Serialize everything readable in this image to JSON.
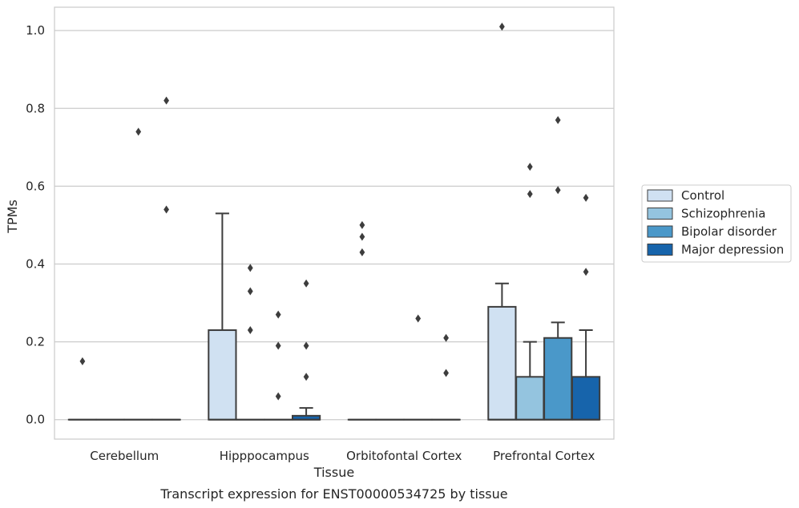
{
  "chart_data": {
    "type": "box",
    "caption": "Transcript expression for ENST00000534725 by tissue",
    "xlabel": "Tissue",
    "ylabel": "TPMs",
    "ylim": [
      -0.05,
      1.06
    ],
    "yticks": [
      0.0,
      0.2,
      0.4,
      0.6,
      0.8,
      1.0
    ],
    "ytick_labels": [
      "0.0",
      "0.2",
      "0.4",
      "0.6",
      "0.8",
      "1.0"
    ],
    "grid": true,
    "legend_position": "right",
    "categories": [
      "Cerebellum",
      "Hipppocampus",
      "Orbitofontal Cortex",
      "Prefrontal Cortex"
    ],
    "series": [
      {
        "name": "Control",
        "color": "#d0e1f2",
        "boxes": [
          {
            "q1": 0,
            "median": 0,
            "q3": 0,
            "whisker_low": 0,
            "whisker_high": 0,
            "outliers": [
              0.15
            ]
          },
          {
            "q1": 0,
            "median": 0,
            "q3": 0.23,
            "whisker_low": 0,
            "whisker_high": 0.53,
            "outliers": []
          },
          {
            "q1": 0,
            "median": 0,
            "q3": 0,
            "whisker_low": 0,
            "whisker_high": 0,
            "outliers": [
              0.43,
              0.47,
              0.5
            ]
          },
          {
            "q1": 0,
            "median": 0,
            "q3": 0.29,
            "whisker_low": 0,
            "whisker_high": 0.35,
            "outliers": [
              1.01
            ]
          }
        ]
      },
      {
        "name": "Schizophrenia",
        "color": "#94c4df",
        "boxes": [
          {
            "q1": 0,
            "median": 0,
            "q3": 0,
            "whisker_low": 0,
            "whisker_high": 0,
            "outliers": []
          },
          {
            "q1": 0,
            "median": 0,
            "q3": 0,
            "whisker_low": 0,
            "whisker_high": 0,
            "outliers": [
              0.23,
              0.33,
              0.39
            ]
          },
          {
            "q1": 0,
            "median": 0,
            "q3": 0,
            "whisker_low": 0,
            "whisker_high": 0,
            "outliers": []
          },
          {
            "q1": 0,
            "median": 0,
            "q3": 0.11,
            "whisker_low": 0,
            "whisker_high": 0.2,
            "outliers": [
              0.58,
              0.65
            ]
          }
        ]
      },
      {
        "name": "Bipolar disorder",
        "color": "#4a98c9",
        "boxes": [
          {
            "q1": 0,
            "median": 0,
            "q3": 0,
            "whisker_low": 0,
            "whisker_high": 0,
            "outliers": [
              0.74
            ]
          },
          {
            "q1": 0,
            "median": 0,
            "q3": 0,
            "whisker_low": 0,
            "whisker_high": 0,
            "outliers": [
              0.06,
              0.19,
              0.27
            ]
          },
          {
            "q1": 0,
            "median": 0,
            "q3": 0,
            "whisker_low": 0,
            "whisker_high": 0,
            "outliers": [
              0.26
            ]
          },
          {
            "q1": 0,
            "median": 0,
            "q3": 0.21,
            "whisker_low": 0,
            "whisker_high": 0.25,
            "outliers": [
              0.59,
              0.77
            ]
          }
        ]
      },
      {
        "name": "Major depression",
        "color": "#1764ab",
        "boxes": [
          {
            "q1": 0,
            "median": 0,
            "q3": 0,
            "whisker_low": 0,
            "whisker_high": 0,
            "outliers": [
              0.54,
              0.82
            ]
          },
          {
            "q1": 0,
            "median": 0,
            "q3": 0.01,
            "whisker_low": 0,
            "whisker_high": 0.03,
            "outliers": [
              0.11,
              0.19,
              0.35
            ]
          },
          {
            "q1": 0,
            "median": 0,
            "q3": 0,
            "whisker_low": 0,
            "whisker_high": 0,
            "outliers": [
              0.12,
              0.21
            ]
          },
          {
            "q1": 0,
            "median": 0,
            "q3": 0.11,
            "whisker_low": 0,
            "whisker_high": 0.23,
            "outliers": [
              0.38,
              0.57
            ]
          }
        ]
      }
    ]
  }
}
